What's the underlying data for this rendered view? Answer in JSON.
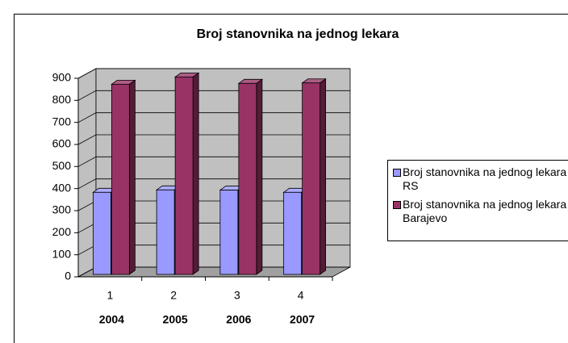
{
  "chart_data": {
    "type": "bar3d",
    "title": "Broj stanovnika na jednog lekara",
    "categories": [
      "1",
      "2",
      "3",
      "4"
    ],
    "category_labels": [
      "2004",
      "2005",
      "2006",
      "2007"
    ],
    "series": [
      {
        "name": "Broj stanovnika na jednog lekara RS",
        "color": "#9999ff",
        "values": [
          372,
          383,
          382,
          372
        ]
      },
      {
        "name": "Broj stanovnika na jednog lekara Barajevo",
        "color": "#993366",
        "values": [
          862,
          895,
          866,
          868
        ]
      }
    ],
    "ylim": [
      0,
      900
    ],
    "yticks": [
      0,
      100,
      200,
      300,
      400,
      500,
      600,
      700,
      800,
      900
    ],
    "grid": true,
    "legend": "right"
  }
}
